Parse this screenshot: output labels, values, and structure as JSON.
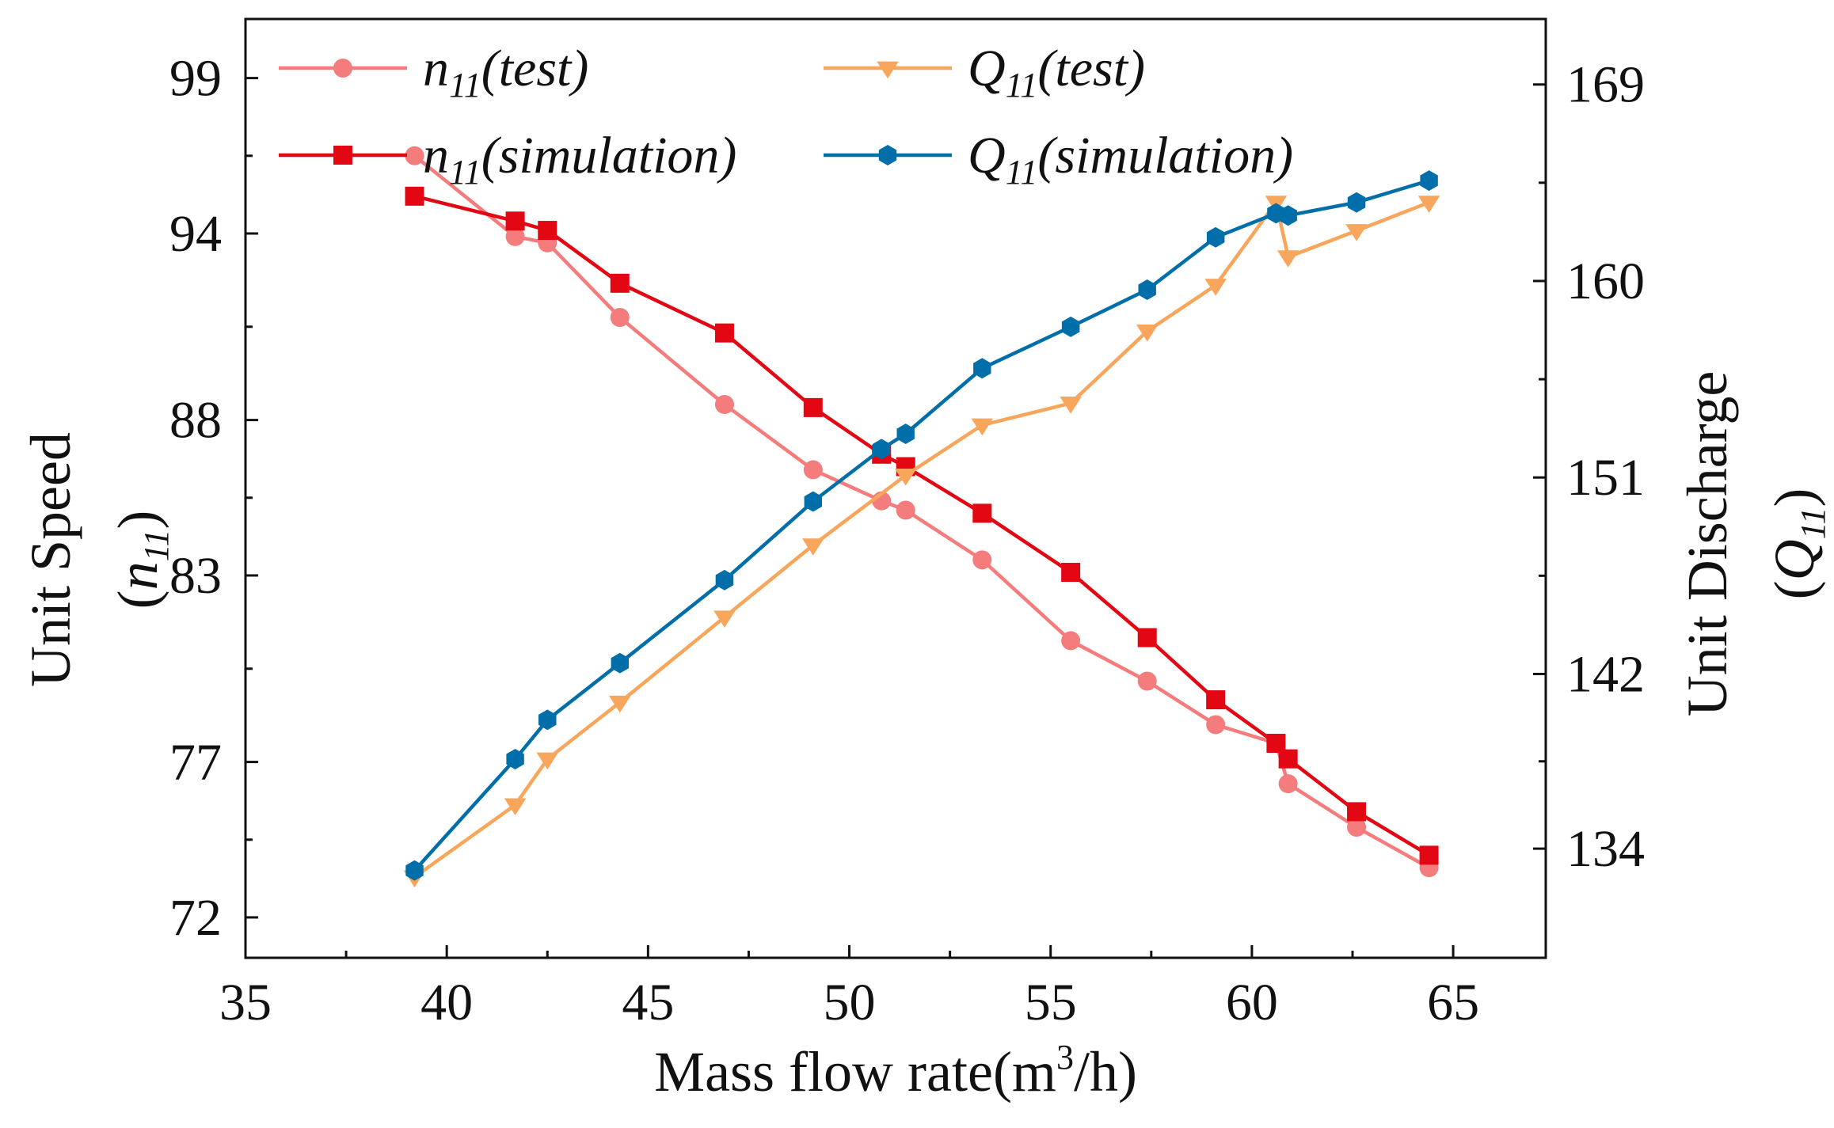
{
  "chart_data": {
    "type": "line",
    "title": "",
    "xlabel": "Mass flow rate(m",
    "xlabel_sup": "3",
    "xlabel_tail": "/h)",
    "ylabel_left": "Unit Speed",
    "ylabel_left_sym": "n",
    "ylabel_left_sub": "11",
    "ylabel_right": "Unit Discharge",
    "ylabel_right_sym": "Q",
    "ylabel_right_sub": "11",
    "xlim": [
      35,
      67.3
    ],
    "ylim_left": [
      70.7,
      100.9
    ],
    "ylim_right": [
      129.0,
      172.0
    ],
    "xticks": [
      35,
      40,
      45,
      50,
      55,
      60,
      65
    ],
    "yticks_left": [
      72,
      77,
      83,
      88,
      94,
      99
    ],
    "yticks_right": [
      134,
      142,
      151,
      160,
      169
    ],
    "grid": false,
    "legend_position": "top",
    "series": [
      {
        "name": "n11(test)",
        "label_sym": "n",
        "label_sub": "11",
        "label_rest": "(test)",
        "axis": "left",
        "color": "#f47c7c",
        "marker": "circle",
        "x": [
          39.2,
          41.7,
          42.5,
          44.3,
          46.9,
          49.1,
          50.8,
          51.4,
          53.3,
          55.5,
          57.4,
          59.1,
          60.6,
          60.9,
          62.6,
          64.4
        ],
        "y": [
          96.5,
          93.9,
          93.7,
          91.3,
          88.5,
          86.4,
          85.4,
          85.1,
          83.5,
          80.9,
          79.6,
          78.2,
          77.6,
          76.3,
          74.9,
          73.6
        ]
      },
      {
        "name": "n11(simulation)",
        "label_sym": "n",
        "label_sub": "11",
        "label_rest": "(simulation)",
        "axis": "left",
        "color": "#e30613",
        "marker": "square",
        "x": [
          39.2,
          41.7,
          42.5,
          44.3,
          46.9,
          49.1,
          50.8,
          51.4,
          53.3,
          55.5,
          57.4,
          59.1,
          60.6,
          60.9,
          62.6,
          64.4
        ],
        "y": [
          95.2,
          94.4,
          94.1,
          92.4,
          90.8,
          88.4,
          86.9,
          86.5,
          85.0,
          83.1,
          81.0,
          79.0,
          77.6,
          77.1,
          75.4,
          74.0
        ]
      },
      {
        "name": "Q11(test)",
        "label_sym": "Q",
        "label_sub": "11",
        "label_rest": "(test)",
        "axis": "right",
        "color": "#f7a65c",
        "marker": "triangle-down",
        "x": [
          39.2,
          41.7,
          42.5,
          44.3,
          46.9,
          49.1,
          51.4,
          53.3,
          55.5,
          57.4,
          59.1,
          60.6,
          60.9,
          62.6,
          64.4
        ],
        "y": [
          132.7,
          136.0,
          138.1,
          140.7,
          144.6,
          147.9,
          151.1,
          153.4,
          154.4,
          157.7,
          159.8,
          163.6,
          161.1,
          162.3,
          163.6
        ]
      },
      {
        "name": "Q11(simulation)",
        "label_sym": "Q",
        "label_sub": "11",
        "label_rest": "(simulation)",
        "axis": "right",
        "color": "#006ea8",
        "marker": "hexagon",
        "x": [
          39.2,
          41.7,
          42.5,
          44.3,
          46.9,
          49.1,
          50.8,
          51.4,
          53.3,
          55.5,
          57.4,
          59.1,
          60.6,
          60.9,
          62.6,
          64.4
        ],
        "y": [
          133.0,
          138.1,
          139.9,
          142.5,
          146.3,
          149.9,
          152.3,
          153.0,
          156.0,
          157.9,
          159.6,
          162.0,
          163.1,
          163.0,
          163.6,
          164.6
        ]
      }
    ]
  }
}
